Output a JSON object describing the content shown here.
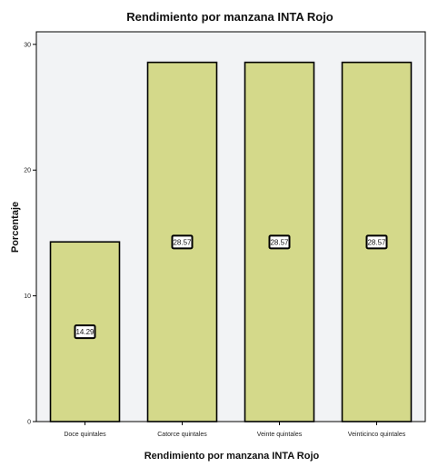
{
  "chart_data": {
    "type": "bar",
    "title": "Rendimiento por manzana INTA Rojo",
    "xlabel": "Rendimiento por manzana INTA Rojo",
    "ylabel": "Porcentaje",
    "categories": [
      "Doce quintales",
      "Catorce quintales",
      "Veinte quintales",
      "Veinticinco quintales"
    ],
    "values": [
      14.29,
      28.57,
      28.57,
      28.57
    ],
    "data_labels": [
      "14.29",
      "28.57",
      "28.57",
      "28.57"
    ],
    "ylim": [
      0,
      31
    ],
    "yticks": [
      0,
      10,
      20,
      30
    ],
    "grid": false,
    "bar_color": "#d4d98a",
    "plot_background": "#f2f3f5"
  }
}
